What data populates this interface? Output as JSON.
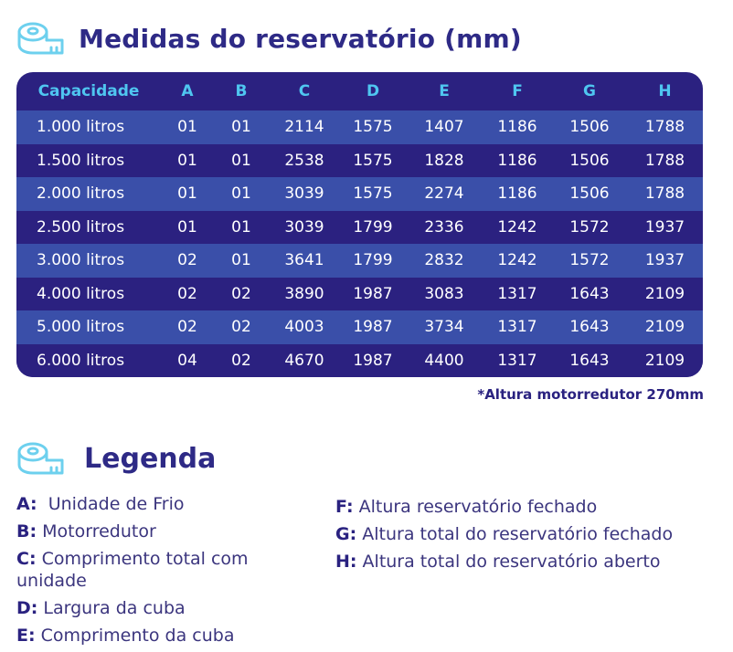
{
  "title": "Medidas do reservatório (mm)",
  "table": {
    "headers": [
      "Capacidade",
      "A",
      "B",
      "C",
      "D",
      "E",
      "F",
      "G",
      "H"
    ],
    "rows": [
      [
        "1.000 litros",
        "01",
        "01",
        "2114",
        "1575",
        "1407",
        "1186",
        "1506",
        "1788"
      ],
      [
        "1.500 litros",
        "01",
        "01",
        "2538",
        "1575",
        "1828",
        "1186",
        "1506",
        "1788"
      ],
      [
        "2.000 litros",
        "01",
        "01",
        "3039",
        "1575",
        "2274",
        "1186",
        "1506",
        "1788"
      ],
      [
        "2.500 litros",
        "01",
        "01",
        "3039",
        "1799",
        "2336",
        "1242",
        "1572",
        "1937"
      ],
      [
        "3.000 litros",
        "02",
        "01",
        "3641",
        "1799",
        "2832",
        "1242",
        "1572",
        "1937"
      ],
      [
        "4.000 litros",
        "02",
        "02",
        "3890",
        "1987",
        "3083",
        "1317",
        "1643",
        "2109"
      ],
      [
        "5.000 litros",
        "02",
        "02",
        "4003",
        "1987",
        "3734",
        "1317",
        "1643",
        "2109"
      ],
      [
        "6.000 litros",
        "04",
        "02",
        "4670",
        "1987",
        "4400",
        "1317",
        "1643",
        "2109"
      ]
    ]
  },
  "note": "*Altura motorredutor 270mm",
  "legend": {
    "title": "Legenda",
    "left": [
      {
        "key": "A:",
        "text": "  Unidade de Frio"
      },
      {
        "key": "B:",
        "text": " Motorredutor"
      },
      {
        "key": "C:",
        "text": " Comprimento total com unidade"
      },
      {
        "key": "D:",
        "text": " Largura da cuba"
      },
      {
        "key": "E:",
        "text": " Comprimento da cuba"
      }
    ],
    "right": [
      {
        "key": "F:",
        "text": " Altura reservatório fechado"
      },
      {
        "key": "G:",
        "text": " Altura total do reservatório fechado"
      },
      {
        "key": "H:",
        "text": " Altura total do reservatório aberto"
      }
    ]
  },
  "colors": {
    "navy": "#2b2180",
    "row_light": "#3a4fa9",
    "header_text": "#4fc6f0",
    "icon": "#6dd0ee"
  },
  "icons": [
    "measuring-tape-icon"
  ]
}
